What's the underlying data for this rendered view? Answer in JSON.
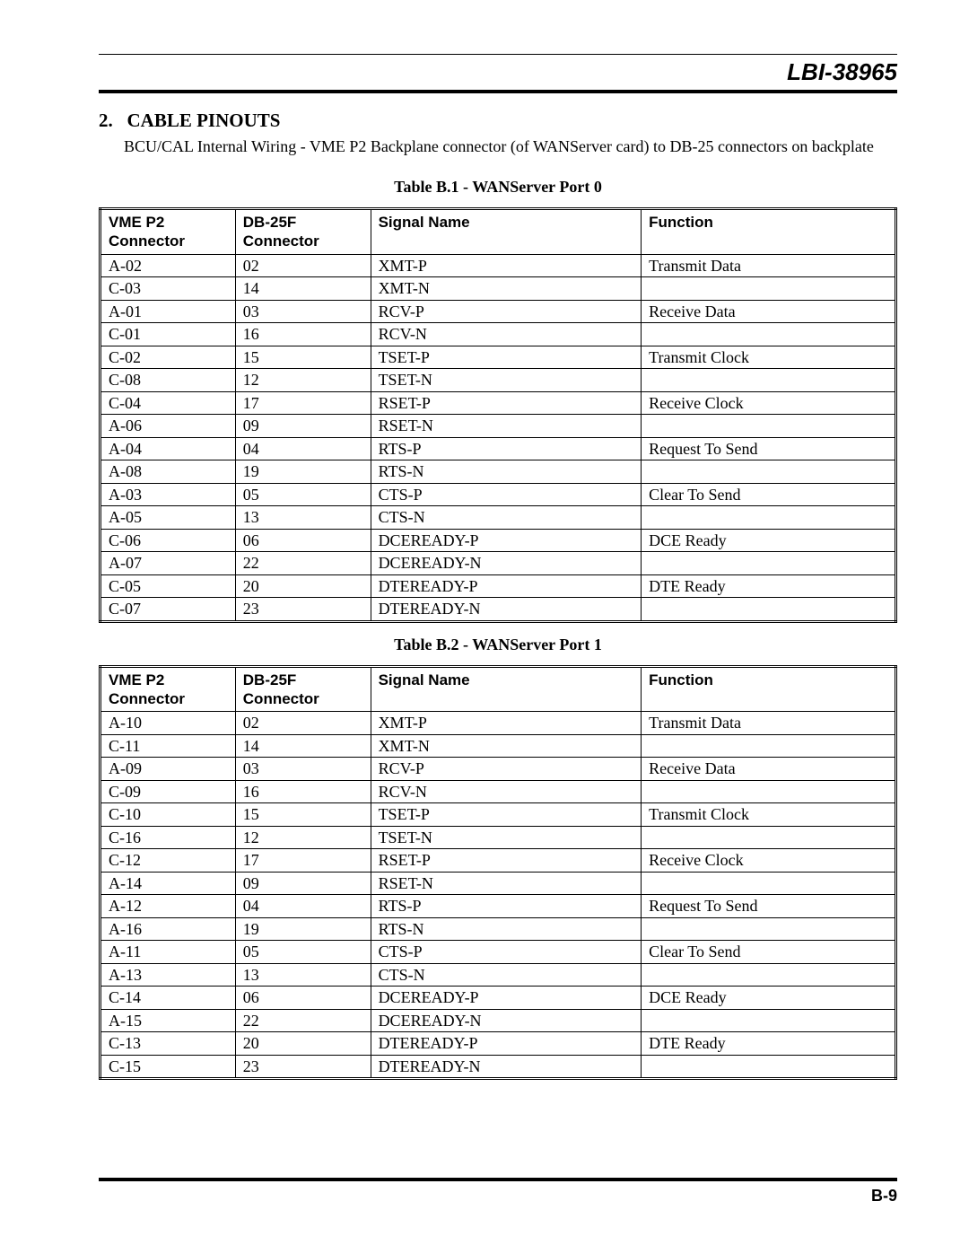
{
  "doc_id": "LBI-38965",
  "section": {
    "number": "2.",
    "title": "CABLE PINOUTS",
    "subtitle": "BCU/CAL Internal Wiring - VME P2 Backplane connector (of WANServer card) to DB-25 connectors on backplate"
  },
  "tables": {
    "t1": {
      "caption": "Table B.1 - WANServer Port 0",
      "headers": [
        "VME P2 Connector",
        "DB-25F Connector",
        "Signal Name",
        "Function"
      ],
      "rows": [
        [
          "A-02",
          "02",
          "XMT-P",
          "Transmit Data"
        ],
        [
          "C-03",
          "14",
          "XMT-N",
          ""
        ],
        [
          "A-01",
          "03",
          "RCV-P",
          "Receive Data"
        ],
        [
          "C-01",
          "16",
          "RCV-N",
          ""
        ],
        [
          "C-02",
          "15",
          "TSET-P",
          "Transmit Clock"
        ],
        [
          "C-08",
          "12",
          "TSET-N",
          ""
        ],
        [
          "C-04",
          "17",
          "RSET-P",
          "Receive Clock"
        ],
        [
          "A-06",
          "09",
          "RSET-N",
          ""
        ],
        [
          "A-04",
          "04",
          "RTS-P",
          "Request To Send"
        ],
        [
          "A-08",
          "19",
          "RTS-N",
          ""
        ],
        [
          "A-03",
          "05",
          "CTS-P",
          "Clear To Send"
        ],
        [
          "A-05",
          "13",
          "CTS-N",
          ""
        ],
        [
          "C-06",
          "06",
          "DCEREADY-P",
          "DCE Ready"
        ],
        [
          "A-07",
          "22",
          "DCEREADY-N",
          ""
        ],
        [
          "C-05",
          "20",
          "DTEREADY-P",
          "DTE Ready"
        ],
        [
          "C-07",
          "23",
          "DTEREADY-N",
          ""
        ]
      ]
    },
    "t2": {
      "caption": "Table B.2 - WANServer Port 1",
      "headers": [
        "VME P2 Connector",
        "DB-25F Connector",
        "Signal Name",
        "Function"
      ],
      "rows": [
        [
          "A-10",
          "02",
          "XMT-P",
          "Transmit Data"
        ],
        [
          "C-11",
          "14",
          "XMT-N",
          ""
        ],
        [
          "A-09",
          "03",
          "RCV-P",
          "Receive Data"
        ],
        [
          "C-09",
          "16",
          "RCV-N",
          ""
        ],
        [
          "C-10",
          "15",
          "TSET-P",
          "Transmit Clock"
        ],
        [
          "C-16",
          "12",
          "TSET-N",
          ""
        ],
        [
          "C-12",
          "17",
          "RSET-P",
          "Receive Clock"
        ],
        [
          "A-14",
          "09",
          "RSET-N",
          ""
        ],
        [
          "A-12",
          "04",
          "RTS-P",
          "Request To Send"
        ],
        [
          "A-16",
          "19",
          "RTS-N",
          ""
        ],
        [
          "A-11",
          "05",
          "CTS-P",
          "Clear To Send"
        ],
        [
          "A-13",
          "13",
          "CTS-N",
          ""
        ],
        [
          "C-14",
          "06",
          "DCEREADY-P",
          "DCE Ready"
        ],
        [
          "A-15",
          "22",
          "DCEREADY-N",
          ""
        ],
        [
          "C-13",
          "20",
          "DTEREADY-P",
          "DTE Ready"
        ],
        [
          "C-15",
          "23",
          "DTEREADY-N",
          ""
        ]
      ]
    }
  },
  "page_number": "B-9"
}
